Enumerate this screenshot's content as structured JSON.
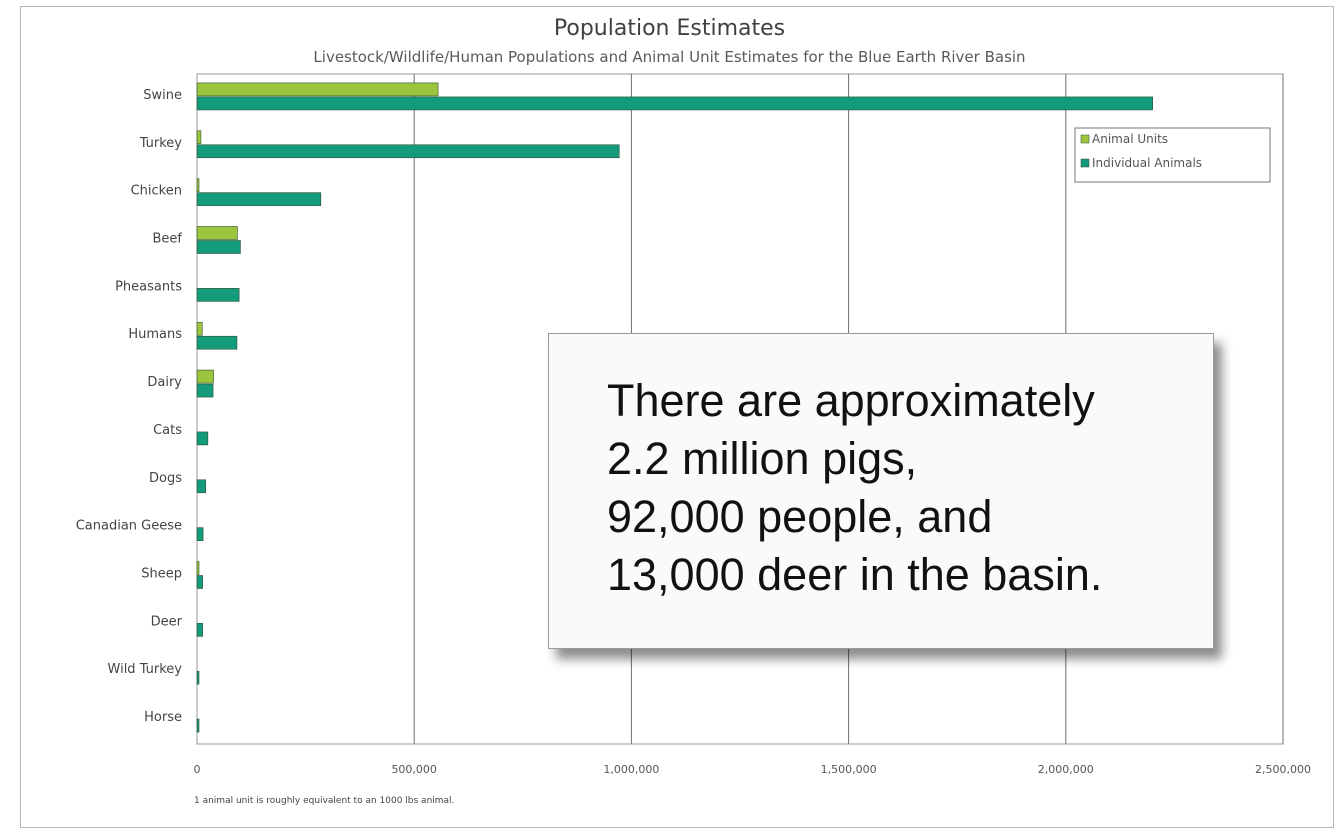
{
  "chart_data": {
    "type": "bar",
    "orientation": "horizontal",
    "title": "Population Estimates",
    "subtitle": "Livestock/Wildlife/Human Populations and Animal Unit Estimates for the Blue Earth River Basin",
    "categories": [
      "Swine",
      "Turkey",
      "Chicken",
      "Beef",
      "Pheasants",
      "Humans",
      "Dairy",
      "Cats",
      "Dogs",
      "Canadian Geese",
      "Sheep",
      "Deer",
      "Wild Turkey",
      "Horse"
    ],
    "series": [
      {
        "name": "Animal Units",
        "color": "#9bc53d",
        "values": [
          555000,
          9000,
          3000,
          93000,
          0,
          12000,
          38000,
          0,
          0,
          0,
          1500,
          0,
          0,
          0
        ]
      },
      {
        "name": "Individual Animals",
        "color": "#139b7c",
        "values": [
          2200000,
          972000,
          285000,
          100000,
          97000,
          92000,
          37000,
          25000,
          20000,
          14000,
          13000,
          13000,
          1500,
          1000
        ]
      }
    ],
    "xlim": [
      0,
      2500000
    ],
    "xticks": [
      "0",
      "500,000",
      "1,000,000",
      "1,500,000",
      "2,000,000",
      "2,500,000"
    ],
    "xtick_values": [
      0,
      500000,
      1000000,
      1500000,
      2000000,
      2500000
    ],
    "grid": true,
    "legend_position": "top-right",
    "xlabel": "",
    "ylabel": ""
  },
  "footnote": "1 animal unit is roughly equivalent to an 1000 lbs animal.",
  "callout": {
    "lines": [
      "There are approximately",
      "2.2 million pigs,",
      "92,000 people, and",
      "13,000 deer in the basin."
    ]
  }
}
